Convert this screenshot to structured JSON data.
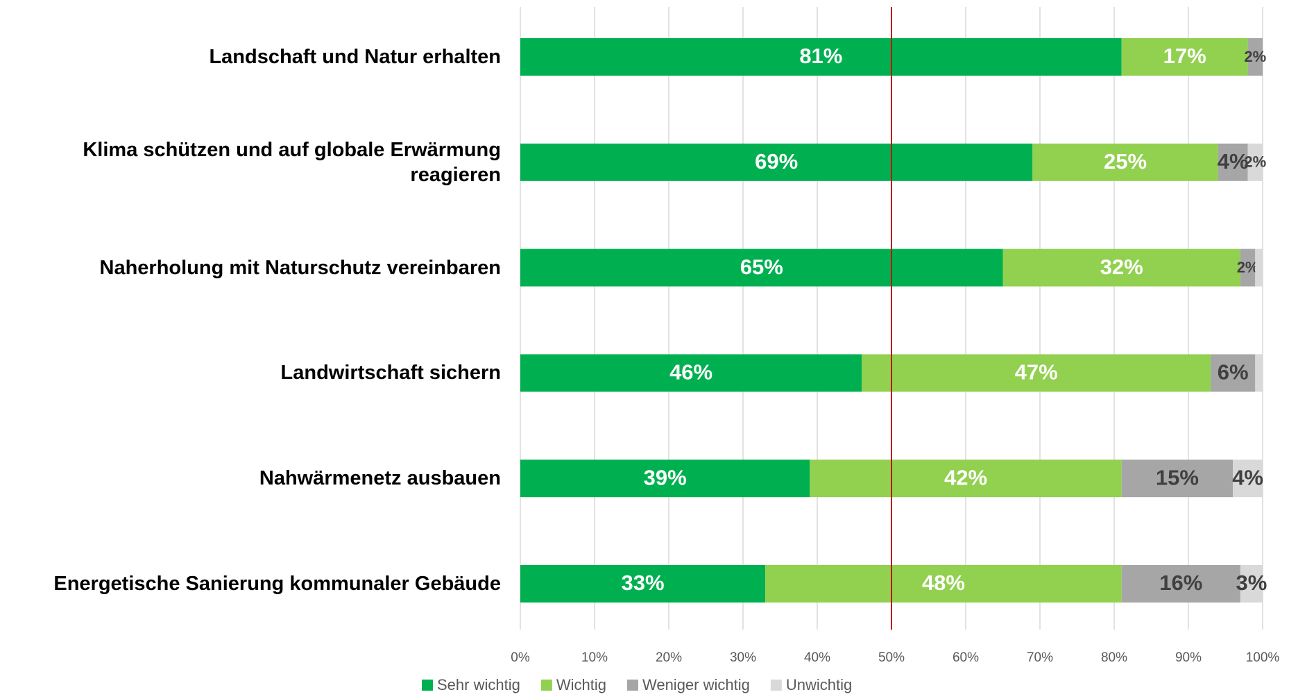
{
  "chart_data": {
    "type": "stacked_bar_horizontal",
    "categories": [
      "Landschaft und Natur erhalten",
      "Klima schützen und auf globale Erwärmung reagieren",
      "Naherholung mit Naturschutz vereinbaren",
      "Landwirtschaft sichern",
      "Nahwärmenetz ausbauen",
      "Energetische Sanierung kommunaler Gebäude"
    ],
    "series": [
      {
        "name": "Sehr wichtig",
        "color": "#00b050",
        "label_color": "#ffffff",
        "values": [
          81,
          69,
          65,
          46,
          39,
          33
        ],
        "value_labels": [
          "81%",
          "69%",
          "65%",
          "46%",
          "39%",
          "33%"
        ]
      },
      {
        "name": "Wichtig",
        "color": "#92d050",
        "label_color": "#ffffff",
        "values": [
          17,
          25,
          32,
          47,
          42,
          48
        ],
        "value_labels": [
          "17%",
          "25%",
          "32%",
          "47%",
          "42%",
          "48%"
        ]
      },
      {
        "name": "Weniger wichtig",
        "color": "#a6a6a6",
        "label_color": "#404040",
        "values": [
          2,
          4,
          2,
          6,
          15,
          16
        ],
        "value_labels": [
          "2%",
          "4%",
          "2%",
          "6%",
          "15%",
          "16%"
        ]
      },
      {
        "name": "Unwichtig",
        "color": "#d9d9d9",
        "label_color": "#404040",
        "values": [
          0,
          2,
          1,
          1,
          4,
          3
        ],
        "value_labels": [
          null,
          "2%",
          null,
          null,
          "4%",
          "3%"
        ]
      }
    ],
    "xlim": [
      0,
      100
    ],
    "xticks": [
      {
        "value": 0,
        "label": "0%"
      },
      {
        "value": 10,
        "label": "10%"
      },
      {
        "value": 20,
        "label": "20%"
      },
      {
        "value": 30,
        "label": "30%"
      },
      {
        "value": 40,
        "label": "40%"
      },
      {
        "value": 50,
        "label": "50%"
      },
      {
        "value": 60,
        "label": "60%"
      },
      {
        "value": 70,
        "label": "70%"
      },
      {
        "value": 80,
        "label": "80%"
      },
      {
        "value": 90,
        "label": "90%"
      },
      {
        "value": 100,
        "label": "100%"
      }
    ],
    "grid": true,
    "reference_line": {
      "value": 50,
      "color": "#c00000"
    },
    "legend": "bottom"
  }
}
